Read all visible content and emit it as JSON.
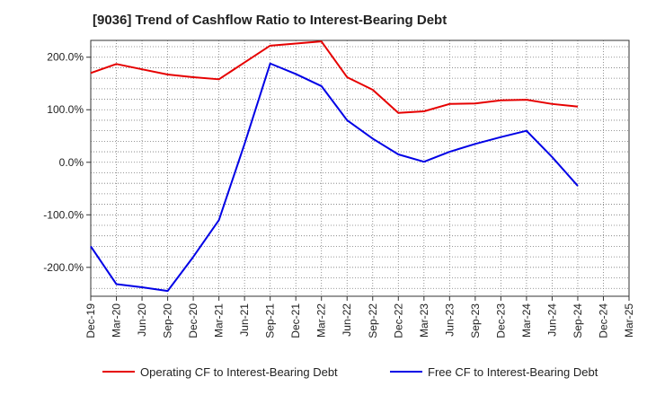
{
  "chart_data": {
    "type": "line",
    "title": "[9036]  Trend of Cashflow Ratio to Interest-Bearing Debt",
    "xlabel": "",
    "ylabel": "",
    "categories": [
      "Dec-19",
      "Mar-20",
      "Jun-20",
      "Sep-20",
      "Dec-20",
      "Mar-21",
      "Jun-21",
      "Sep-21",
      "Dec-21",
      "Mar-22",
      "Jun-22",
      "Sep-22",
      "Dec-22",
      "Mar-23",
      "Jun-23",
      "Sep-23",
      "Dec-23",
      "Mar-24",
      "Jun-24",
      "Sep-24",
      "Dec-24",
      "Mar-25"
    ],
    "ylim": [
      -255,
      232
    ],
    "yticks": [
      200,
      100,
      0,
      -100,
      -200
    ],
    "ytick_labels": [
      "200.0%",
      "100.0%",
      "0.0%",
      "-100.0%",
      "-200.0%"
    ],
    "grid": true,
    "legend_position": "bottom",
    "series": [
      {
        "name": "Operating CF to Interest-Bearing Debt",
        "color": "#e60000",
        "points": [
          {
            "x": "Dec-19",
            "y": 170
          },
          {
            "x": "Mar-20",
            "y": 187
          },
          {
            "x": "Jun-20",
            "y": 177
          },
          {
            "x": "Sep-20",
            "y": 167
          },
          {
            "x": "Dec-20",
            "y": 162
          },
          {
            "x": "Mar-21",
            "y": 158
          },
          {
            "x": "Jun-21",
            "y": 190
          },
          {
            "x": "Sep-21",
            "y": 222
          },
          {
            "x": "Dec-21",
            "y": 226
          },
          {
            "x": "Mar-22",
            "y": 230
          },
          {
            "x": "Jun-22",
            "y": 162
          },
          {
            "x": "Sep-22",
            "y": 138
          },
          {
            "x": "Dec-22",
            "y": 94
          },
          {
            "x": "Mar-23",
            "y": 97
          },
          {
            "x": "Jun-23",
            "y": 111
          },
          {
            "x": "Sep-23",
            "y": 112
          },
          {
            "x": "Dec-23",
            "y": 118
          },
          {
            "x": "Mar-24",
            "y": 119
          },
          {
            "x": "Jun-24",
            "y": 111
          },
          {
            "x": "Sep-24",
            "y": 106
          }
        ]
      },
      {
        "name": "Free CF to Interest-Bearing Debt",
        "color": "#0000e6",
        "points": [
          {
            "x": "Dec-19",
            "y": -160
          },
          {
            "x": "Mar-20",
            "y": -232
          },
          {
            "x": "Jun-20",
            "y": -238
          },
          {
            "x": "Sep-20",
            "y": -245
          },
          {
            "x": "Dec-20",
            "y": -180
          },
          {
            "x": "Mar-21",
            "y": -110
          },
          {
            "x": "Jun-21",
            "y": 35
          },
          {
            "x": "Sep-21",
            "y": 188
          },
          {
            "x": "Dec-21",
            "y": 168
          },
          {
            "x": "Mar-22",
            "y": 145
          },
          {
            "x": "Jun-22",
            "y": 80
          },
          {
            "x": "Sep-22",
            "y": 45
          },
          {
            "x": "Dec-22",
            "y": 15
          },
          {
            "x": "Mar-23",
            "y": 1
          },
          {
            "x": "Jun-23",
            "y": 20
          },
          {
            "x": "Sep-23",
            "y": 35
          },
          {
            "x": "Dec-23",
            "y": 48
          },
          {
            "x": "Mar-24",
            "y": 60
          },
          {
            "x": "Jun-24",
            "y": 10
          },
          {
            "x": "Sep-24",
            "y": -45
          }
        ]
      }
    ]
  }
}
